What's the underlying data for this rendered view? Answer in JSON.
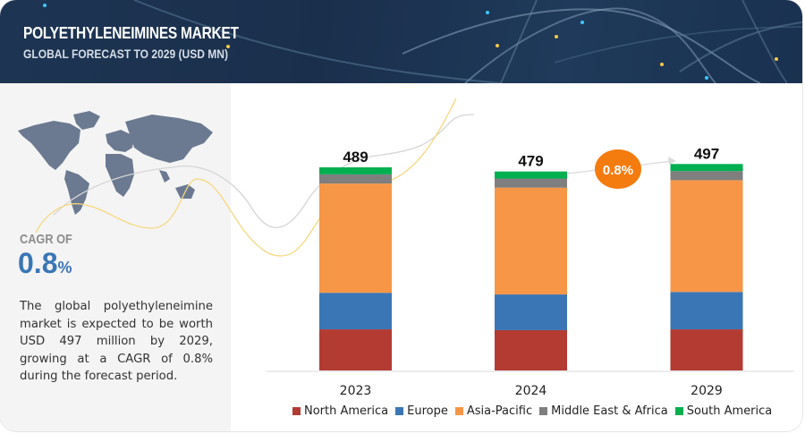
{
  "header": {
    "title": "POLYETHYLENEIMINES MARKET",
    "subtitle": "GLOBAL FORECAST TO 2029 (USD MN)"
  },
  "summary": {
    "cagr_label": "CAGR OF",
    "cagr_value": "0.8",
    "cagr_unit": "%",
    "description": "The global polyethyleneimine market is expected to be worth USD 497 million by 2029, growing at a CAGR of 0.8% during the forecast period."
  },
  "colors": {
    "north_america": "#B33B32",
    "europe": "#3A76B5",
    "asia_pacific": "#F79646",
    "middle_east_africa": "#7F7F7F",
    "south_america": "#00B050",
    "cagr_badge": "#F47B0E",
    "accent_blue": "#3B76B4"
  },
  "chart_data": {
    "type": "bar",
    "stacked": true,
    "title": "POLYETHYLENEIMINES MARKET",
    "subtitle": "GLOBAL FORECAST TO 2029 (USD MN)",
    "xlabel": "",
    "ylabel": "",
    "categories": [
      "2023",
      "2024",
      "2029"
    ],
    "totals": [
      "489",
      "479",
      "497"
    ],
    "series": [
      {
        "name": "North America",
        "key": "north_america",
        "values": [
          99,
          97,
          99
        ]
      },
      {
        "name": "Europe",
        "key": "europe",
        "values": [
          88,
          86,
          90
        ]
      },
      {
        "name": "Asia-Pacific",
        "key": "asia_pacific",
        "values": [
          263,
          257,
          269
        ]
      },
      {
        "name": "Middle East & Africa",
        "key": "middle_east_africa",
        "values": [
          22,
          22,
          22
        ]
      },
      {
        "name": "South America",
        "key": "south_america",
        "values": [
          17,
          17,
          17
        ]
      }
    ],
    "ylim": [
      0,
      500
    ],
    "grid": false,
    "legend_position": "bottom",
    "annotation": "0.8%"
  }
}
